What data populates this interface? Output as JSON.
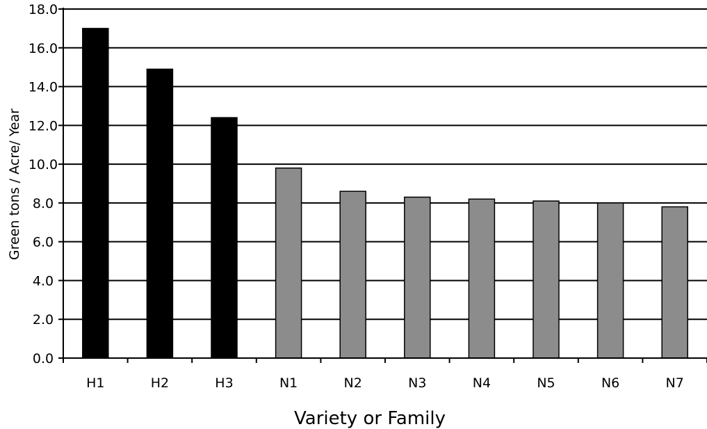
{
  "chart_data": {
    "type": "bar",
    "title": "",
    "xlabel": "Variety or Family",
    "ylabel": "Green tons / Acre/ Year",
    "ylim": [
      0,
      18
    ],
    "yticks": [
      "0.0",
      "2.0",
      "4.0",
      "6.0",
      "8.0",
      "10.0",
      "12.0",
      "14.0",
      "16.0",
      "18.0"
    ],
    "grid": "horizontal",
    "categories": [
      "H1",
      "H2",
      "H3",
      "N1",
      "N2",
      "N3",
      "N4",
      "N5",
      "N6",
      "N7"
    ],
    "values": [
      17.0,
      14.9,
      12.4,
      9.8,
      8.6,
      8.3,
      8.2,
      8.1,
      8.0,
      7.8
    ],
    "colors": [
      "#000000",
      "#000000",
      "#000000",
      "#8c8c8c",
      "#8c8c8c",
      "#8c8c8c",
      "#8c8c8c",
      "#8c8c8c",
      "#8c8c8c",
      "#8c8c8c"
    ]
  }
}
